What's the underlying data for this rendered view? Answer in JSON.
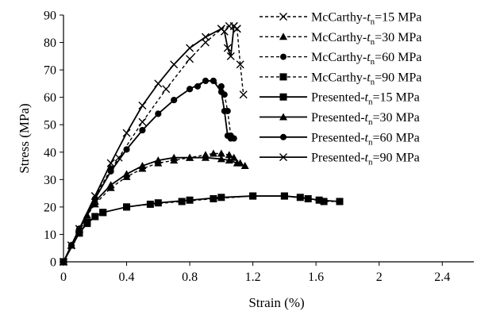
{
  "chart_data": {
    "type": "line",
    "xlabel": "Strain (%)",
    "ylabel": "Stress (MPa)",
    "xlim": [
      0,
      2.6
    ],
    "ylim": [
      0,
      90
    ],
    "xticks": [
      "0",
      "0.4",
      "0.8",
      "1.2",
      "1.6",
      "2",
      "2.4"
    ],
    "yticks": [
      "0",
      "10",
      "20",
      "30",
      "40",
      "50",
      "60",
      "70",
      "80",
      "90"
    ],
    "grid": false,
    "legend_position": "top-right",
    "series": [
      {
        "name_prefix": "McCarthy-",
        "name_var": "t",
        "name_sub": "n",
        "name_suffix": "=15 MPa",
        "line": "dashed",
        "marker": "x",
        "x": [
          0,
          0.05,
          0.1,
          0.2,
          0.35,
          0.5,
          0.65,
          0.8,
          0.9,
          1.0,
          1.05,
          1.08,
          1.1,
          1.12,
          1.14
        ],
        "y": [
          0,
          6,
          12,
          24,
          38,
          51,
          63,
          74,
          80,
          85,
          86,
          86,
          85,
          72,
          61
        ]
      },
      {
        "name_prefix": "McCarthy-",
        "name_var": "t",
        "name_sub": "n",
        "name_suffix": "=30 MPa",
        "line": "dashed",
        "marker": "triangle",
        "x": [
          0,
          0.05,
          0.1,
          0.15,
          0.2,
          0.3,
          0.4,
          0.5,
          0.6,
          0.7,
          0.8,
          0.9,
          0.95,
          1.0,
          1.05,
          1.08,
          1.12
        ],
        "y": [
          0,
          6,
          12,
          17,
          21,
          27,
          31,
          34,
          36,
          37,
          38,
          39,
          39.5,
          39.5,
          39,
          38,
          36
        ]
      },
      {
        "name_prefix": "McCarthy-",
        "name_var": "t",
        "name_sub": "n",
        "name_suffix": "=60 MPa",
        "line": "dashed",
        "marker": "circle",
        "x": [
          0,
          0.05,
          0.1,
          0.2,
          0.3,
          0.4,
          0.5,
          0.6,
          0.7,
          0.8,
          0.85,
          0.9,
          0.95,
          1.0,
          1.02,
          1.04,
          1.06,
          1.08
        ],
        "y": [
          0,
          6,
          12,
          23,
          34,
          41,
          48,
          54,
          59,
          63,
          64,
          66,
          66,
          64,
          61,
          55,
          46,
          45
        ]
      },
      {
        "name_prefix": "McCarthy-",
        "name_var": "t",
        "name_sub": "n",
        "name_suffix": "=90 MPa",
        "line": "dashed",
        "marker": "square",
        "x": [
          0,
          0.1,
          0.15,
          0.25,
          0.4,
          0.55,
          0.75,
          0.95,
          1.2,
          1.4,
          1.55,
          1.65,
          1.75
        ],
        "y": [
          0,
          10.5,
          14.5,
          18,
          20,
          21,
          22,
          23,
          24,
          24,
          23,
          22,
          22
        ]
      },
      {
        "name_prefix": "Presented-",
        "name_var": "t",
        "name_sub": "n",
        "name_suffix": "=15 MPa",
        "line": "solid",
        "marker": "square",
        "x": [
          0,
          0.1,
          0.15,
          0.2,
          0.25,
          0.4,
          0.6,
          0.8,
          1.0,
          1.2,
          1.4,
          1.5,
          1.62,
          1.75
        ],
        "y": [
          0,
          10.5,
          14,
          16.5,
          18,
          20,
          21.5,
          22.5,
          23.5,
          24,
          24,
          23.5,
          22.5,
          22
        ]
      },
      {
        "name_prefix": "Presented-",
        "name_var": "t",
        "name_sub": "n",
        "name_suffix": "=30 MPa",
        "line": "solid",
        "marker": "triangle",
        "x": [
          0,
          0.05,
          0.1,
          0.2,
          0.3,
          0.4,
          0.5,
          0.6,
          0.7,
          0.8,
          0.9,
          1.0,
          1.05,
          1.1,
          1.15
        ],
        "y": [
          0,
          6,
          12,
          22,
          28,
          32,
          35,
          37,
          38,
          38,
          38,
          37.5,
          37,
          36,
          35
        ]
      },
      {
        "name_prefix": "Presented-",
        "name_var": "t",
        "name_sub": "n",
        "name_suffix": "=60 MPa",
        "line": "solid",
        "marker": "circle",
        "x": [
          0,
          0.05,
          0.1,
          0.2,
          0.3,
          0.4,
          0.5,
          0.6,
          0.7,
          0.8,
          0.9,
          0.95,
          1.0,
          1.02,
          1.04,
          1.06
        ],
        "y": [
          0,
          6,
          12,
          23,
          33,
          41,
          48,
          54,
          59,
          63,
          66,
          66,
          62,
          55,
          46,
          45
        ]
      },
      {
        "name_prefix": "Presented-",
        "name_var": "t",
        "name_sub": "n",
        "name_suffix": "=90 MPa",
        "line": "solid",
        "marker": "x",
        "x": [
          0,
          0.05,
          0.1,
          0.2,
          0.3,
          0.4,
          0.5,
          0.6,
          0.7,
          0.8,
          0.9,
          1.0,
          1.02,
          1.04,
          1.06,
          1.08,
          1.1
        ],
        "y": [
          0,
          6,
          12,
          24,
          36,
          47,
          57,
          65,
          72,
          78,
          82,
          85,
          84,
          78,
          75,
          86,
          85
        ]
      }
    ]
  }
}
